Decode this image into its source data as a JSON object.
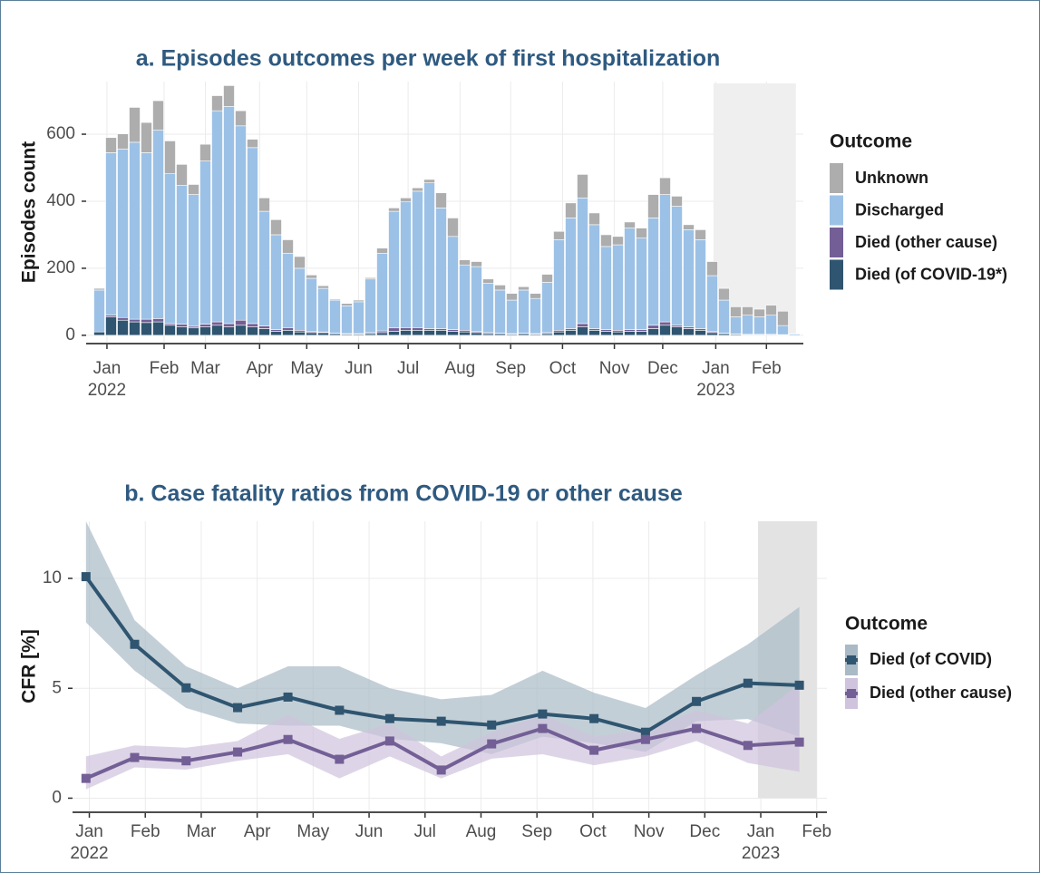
{
  "chart_data": [
    {
      "type": "bar",
      "stacked": true,
      "title": "a. Episodes outcomes per week of first hospitalization",
      "y_label": "Episodes count",
      "legend_title": "Outcome",
      "categories": [
        null,
        null,
        null,
        null,
        null,
        null,
        null,
        null,
        null,
        null,
        null,
        null,
        null,
        null,
        null,
        null,
        null,
        null,
        null,
        null,
        null,
        null,
        null,
        null,
        null,
        null,
        null,
        null,
        null,
        null,
        null,
        null,
        null,
        null,
        null,
        null,
        null,
        null,
        null,
        null,
        null,
        null,
        null,
        null,
        null,
        null,
        null,
        null,
        null,
        null,
        null,
        null,
        null,
        null,
        null,
        null,
        null,
        null,
        null,
        null
      ],
      "series": [
        {
          "name": "Died (of COVID-19*)",
          "color": "#2f5570",
          "values": [
            10,
            55,
            45,
            40,
            38,
            40,
            30,
            25,
            22,
            25,
            30,
            25,
            30,
            25,
            20,
            12,
            15,
            10,
            8,
            8,
            5,
            3,
            3,
            5,
            8,
            12,
            15,
            15,
            15,
            15,
            12,
            10,
            8,
            5,
            5,
            3,
            5,
            3,
            5,
            10,
            15,
            25,
            15,
            12,
            10,
            12,
            12,
            20,
            30,
            25,
            20,
            15,
            8,
            5,
            3,
            2,
            2,
            2,
            1,
            0
          ]
        },
        {
          "name": "Died (other cause)",
          "color": "#735f96",
          "values": [
            0,
            5,
            8,
            8,
            10,
            10,
            5,
            8,
            5,
            8,
            10,
            10,
            15,
            10,
            8,
            5,
            8,
            5,
            3,
            2,
            2,
            2,
            2,
            3,
            5,
            10,
            8,
            8,
            5,
            5,
            5,
            5,
            3,
            3,
            2,
            2,
            2,
            2,
            3,
            5,
            5,
            10,
            5,
            5,
            5,
            5,
            5,
            10,
            10,
            5,
            5,
            5,
            3,
            2,
            1,
            1,
            1,
            1,
            1,
            0
          ]
        },
        {
          "name": "Discharged",
          "color": "#9cc1e6",
          "values": [
            125,
            485,
            503,
            528,
            497,
            562,
            447,
            414,
            393,
            487,
            630,
            648,
            580,
            525,
            342,
            283,
            222,
            185,
            159,
            130,
            98,
            83,
            95,
            160,
            232,
            348,
            375,
            407,
            435,
            360,
            278,
            195,
            194,
            147,
            128,
            100,
            128,
            105,
            150,
            270,
            330,
            375,
            310,
            248,
            255,
            303,
            273,
            320,
            380,
            355,
            290,
            265,
            167,
            98,
            51,
            57,
            52,
            57,
            27,
            4
          ]
        },
        {
          "name": "Unknown",
          "color": "#adadad",
          "values": [
            5,
            45,
            45,
            104,
            90,
            88,
            98,
            63,
            30,
            50,
            45,
            62,
            45,
            25,
            40,
            45,
            40,
            35,
            10,
            8,
            3,
            7,
            5,
            4,
            15,
            10,
            12,
            10,
            10,
            45,
            55,
            15,
            15,
            13,
            15,
            20,
            10,
            15,
            24,
            25,
            45,
            70,
            35,
            35,
            25,
            18,
            30,
            70,
            50,
            30,
            15,
            30,
            42,
            35,
            30,
            25,
            23,
            30,
            43,
            1
          ]
        }
      ],
      "xlim": [
        0,
        60
      ],
      "xticks": [
        {
          "value": 1.15,
          "label": "Jan"
        },
        {
          "value": 6.0,
          "label": "Feb"
        },
        {
          "value": 9.5,
          "label": "Mar"
        },
        {
          "value": 14.1,
          "label": "Apr"
        },
        {
          "value": 18.1,
          "label": "May"
        },
        {
          "value": 22.5,
          "label": "Jun"
        },
        {
          "value": 26.7,
          "label": "Jul"
        },
        {
          "value": 31.1,
          "label": "Aug"
        },
        {
          "value": 35.4,
          "label": "Sep"
        },
        {
          "value": 39.8,
          "label": "Oct"
        },
        {
          "value": 44.2,
          "label": "Nov"
        },
        {
          "value": 48.3,
          "label": "Dec"
        },
        {
          "value": 52.8,
          "label": "Jan"
        },
        {
          "value": 57.1,
          "label": "Feb"
        }
      ],
      "xsublabels": [
        {
          "value": 1.15,
          "label": "2022"
        },
        {
          "value": 52.8,
          "label": "2023"
        }
      ],
      "ylim": [
        -22,
        757
      ],
      "yticks": [
        0,
        200,
        400,
        600
      ],
      "shade": [
        52.6,
        59.6
      ],
      "grid": true
    },
    {
      "type": "line",
      "title": "b. Case fatality ratios from COVID-19 or other cause",
      "y_label": "CFR [%]",
      "legend_title": "Outcome",
      "x": [
        -0.06,
        0.81,
        1.73,
        2.65,
        3.55,
        4.47,
        5.37,
        6.29,
        7.19,
        8.1,
        9.02,
        9.94,
        10.85,
        11.77,
        12.69
      ],
      "series": [
        {
          "name": "Died (of COVID)",
          "color": "#2f5570",
          "band_color": "#a9bac6",
          "values": [
            10.08,
            7.0,
            5.02,
            4.12,
            4.6,
            4.0,
            3.62,
            3.5,
            3.33,
            3.83,
            3.62,
            3.0,
            4.4,
            5.23,
            5.14
          ],
          "lower": [
            8.0,
            5.8,
            4.1,
            3.4,
            3.3,
            3.3,
            2.7,
            2.5,
            2.0,
            2.8,
            2.5,
            2.1,
            3.5,
            3.6,
            2.8
          ],
          "upper": [
            12.6,
            8.1,
            6.0,
            5.0,
            6.0,
            6.0,
            5.0,
            4.5,
            4.7,
            5.8,
            4.8,
            4.1,
            5.6,
            7.0,
            8.7
          ]
        },
        {
          "name": "Died (other cause)",
          "color": "#735f96",
          "band_color": "#cfc3dd",
          "values": [
            0.9,
            1.85,
            1.7,
            2.1,
            2.67,
            1.77,
            2.6,
            1.28,
            2.47,
            3.17,
            2.18,
            2.67,
            3.17,
            2.4,
            2.55
          ],
          "lower": [
            0.4,
            1.4,
            1.3,
            1.7,
            2.0,
            0.9,
            1.9,
            0.9,
            1.8,
            2.0,
            1.5,
            1.9,
            2.6,
            1.6,
            1.2
          ],
          "upper": [
            1.9,
            2.4,
            2.3,
            2.6,
            3.8,
            2.7,
            3.4,
            1.9,
            3.0,
            3.8,
            2.8,
            3.1,
            4.0,
            3.4,
            5.2
          ]
        }
      ],
      "xlim": [
        -0.3,
        13.15
      ],
      "xticks": [
        {
          "value": 0,
          "label": "Jan"
        },
        {
          "value": 1,
          "label": "Feb"
        },
        {
          "value": 2,
          "label": "Mar"
        },
        {
          "value": 3,
          "label": "Apr"
        },
        {
          "value": 4,
          "label": "May"
        },
        {
          "value": 5,
          "label": "Jun"
        },
        {
          "value": 6,
          "label": "Jul"
        },
        {
          "value": 7,
          "label": "Aug"
        },
        {
          "value": 8,
          "label": "Sep"
        },
        {
          "value": 9,
          "label": "Oct"
        },
        {
          "value": 10,
          "label": "Nov"
        },
        {
          "value": 11,
          "label": "Dec"
        },
        {
          "value": 12,
          "label": "Jan"
        },
        {
          "value": 13,
          "label": "Feb"
        }
      ],
      "xsublabels": [
        {
          "value": 0,
          "label": "2022"
        },
        {
          "value": 12,
          "label": "2023"
        }
      ],
      "ylim": [
        -0.6,
        12.6
      ],
      "yticks": [
        0,
        5,
        10
      ],
      "shade": [
        11.95,
        13.0
      ],
      "grid": true
    }
  ]
}
